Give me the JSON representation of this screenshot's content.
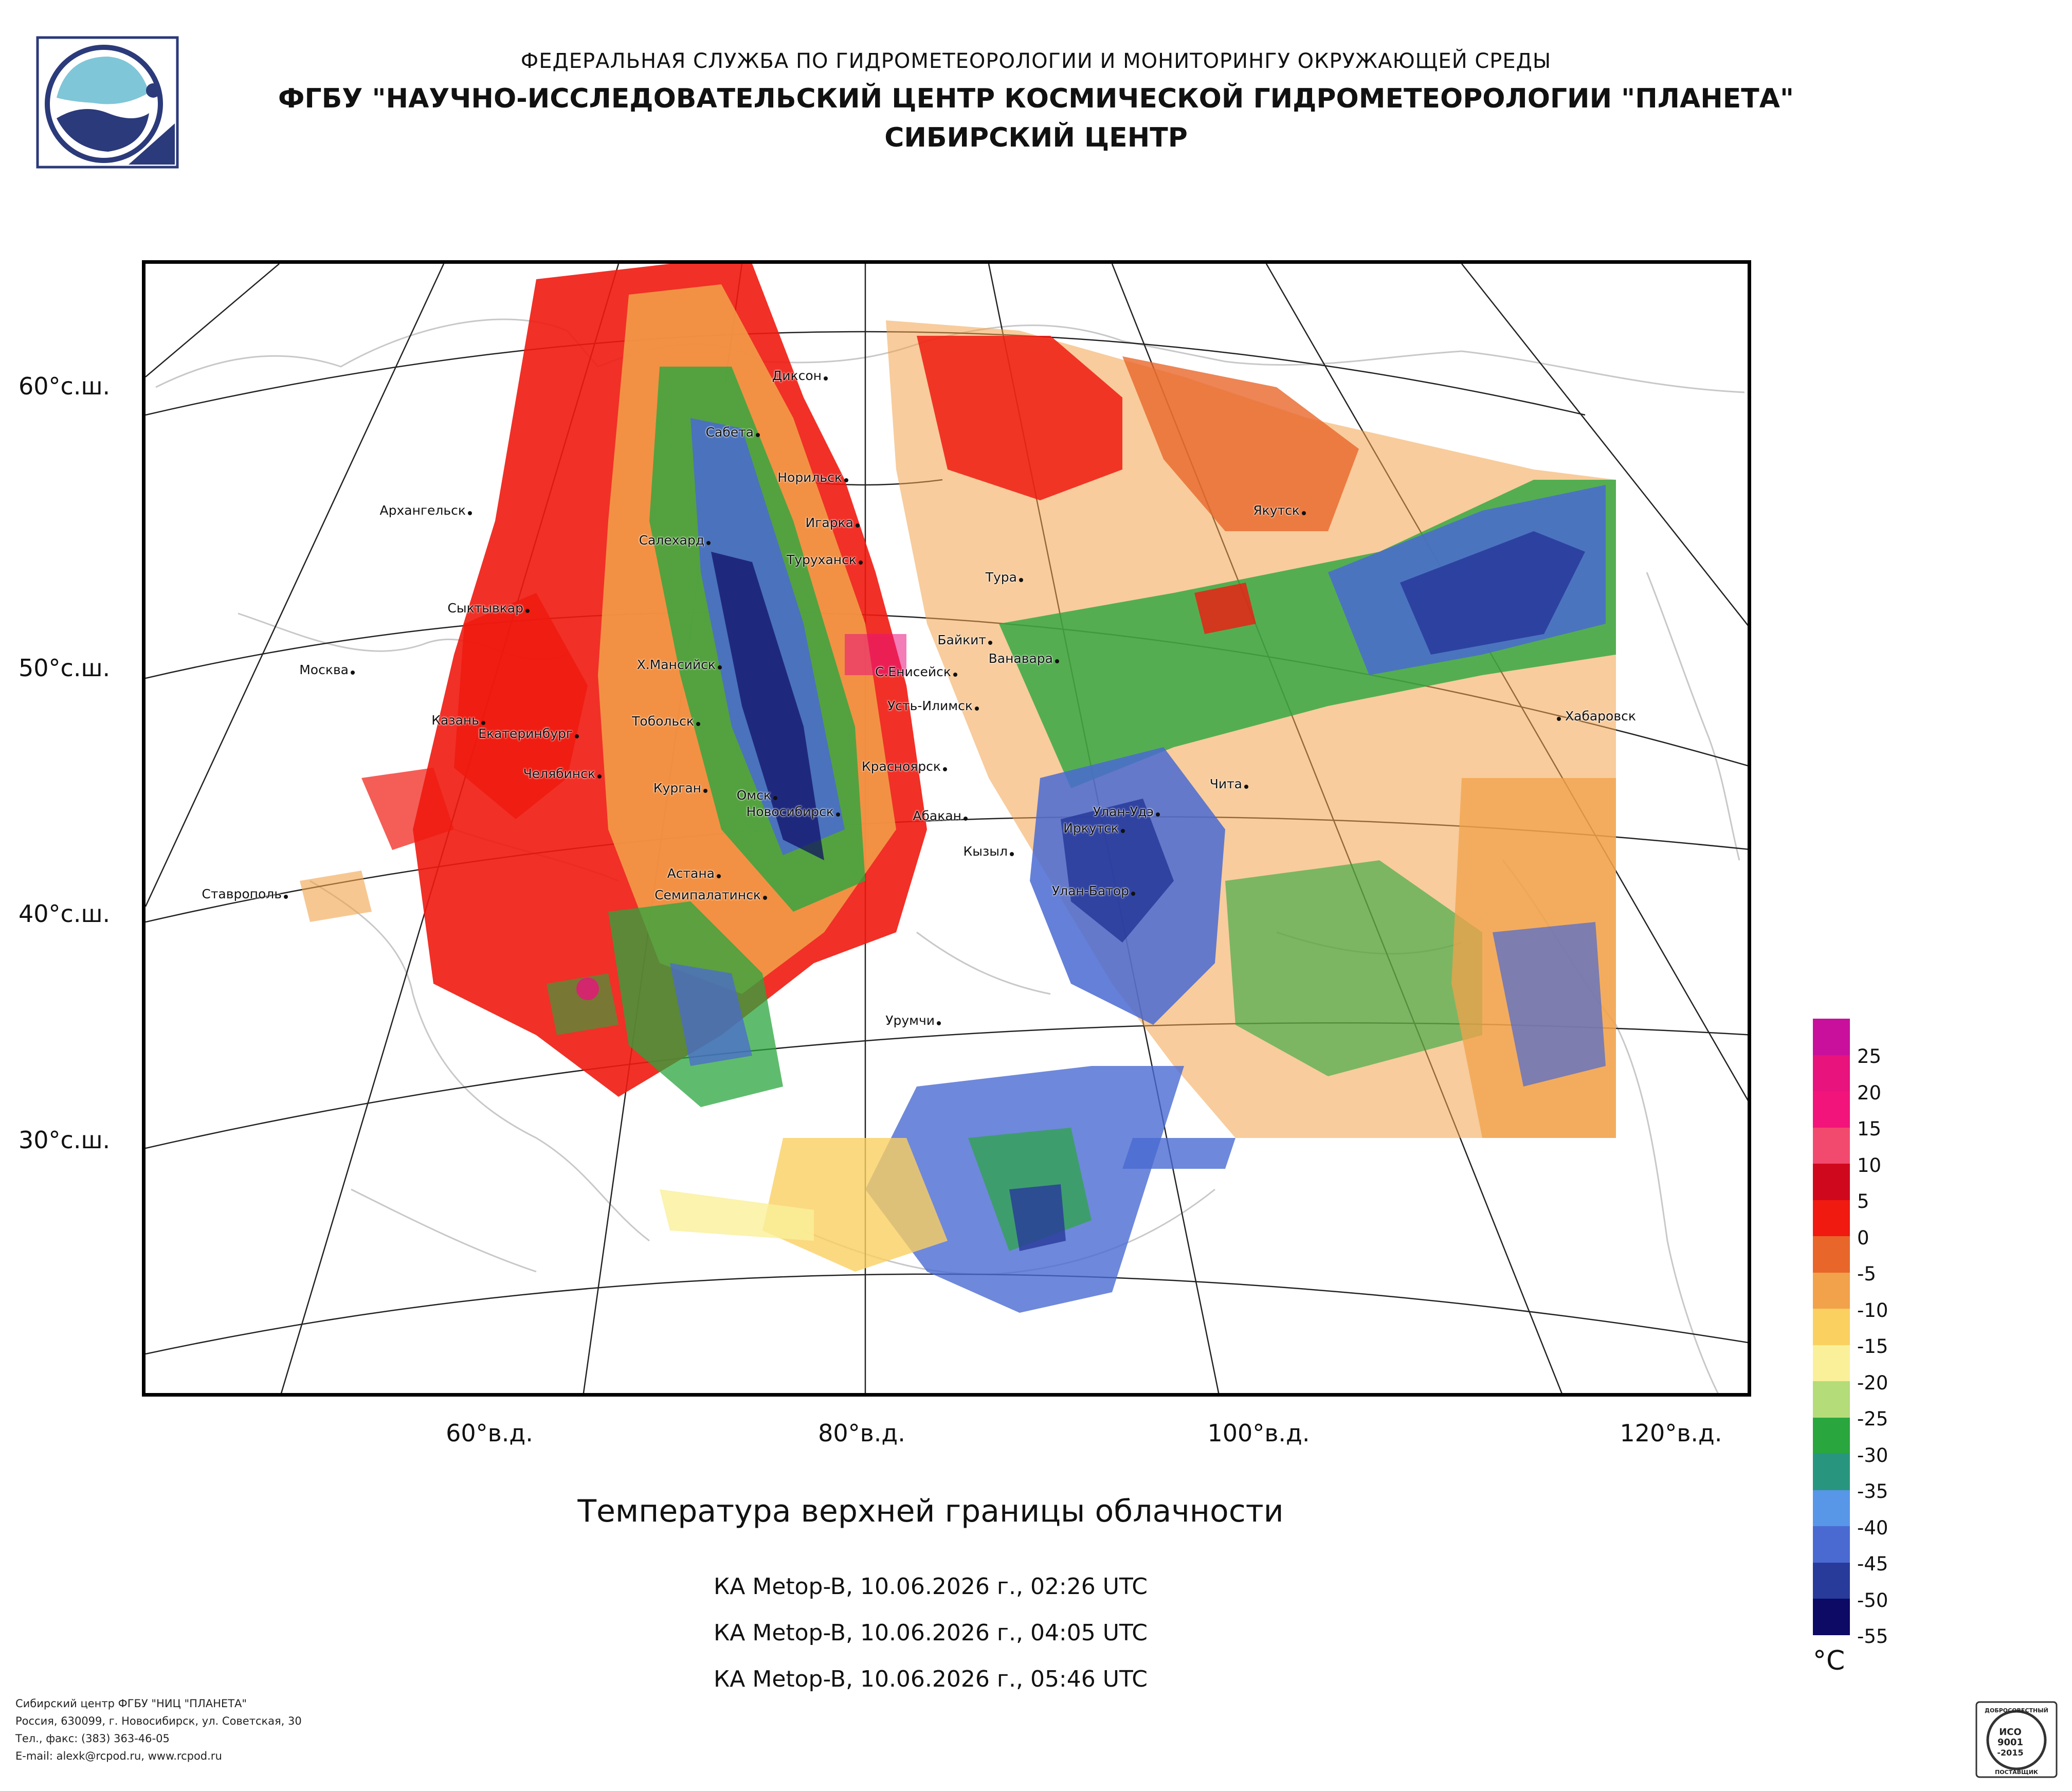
{
  "header": {
    "line1": "ФЕДЕРАЛЬНАЯ СЛУЖБА ПО ГИДРОМЕТЕОРОЛОГИИ И МОНИТОРИНГУ ОКРУЖАЮЩЕЙ СРЕДЫ",
    "line2": "ФГБУ \"НАУЧНО-ИССЛЕДОВАТЕЛЬСКИЙ ЦЕНТР КОСМИЧЕСКОЙ ГИДРОМЕТЕОРОЛОГИИ \"ПЛАНЕТА\"",
    "line3": "СИБИРСКИЙ ЦЕНТР"
  },
  "map": {
    "lat_labels": [
      "60°с.ш.",
      "50°с.ш.",
      "40°с.ш.",
      "30°с.ш."
    ],
    "lon_labels": [
      "60°в.д.",
      "80°в.д.",
      "100°в.д.",
      "120°в.д."
    ],
    "cities": [
      "Диксон",
      "Сабета",
      "Норильск",
      "Игарка",
      "Туруханск",
      "Тура",
      "Якутск",
      "Архангельск",
      "Салехард",
      "Сыктывкар",
      "Москва",
      "Х.Мансийск",
      "Байкит",
      "Ванавара",
      "С.Енисейск",
      "Усть-Илимск",
      "Хабаровск",
      "Казань",
      "Екатеринбург",
      "Тобольск",
      "Челябинск",
      "Курган",
      "Красноярск",
      "Чита",
      "Омск",
      "Новосибирск",
      "Абакан",
      "Улан-Удэ",
      "Иркутск",
      "Кызыл",
      "Астана",
      "Улан-Батор",
      "Ставрополь",
      "Семипалатинск",
      "Урумчи"
    ]
  },
  "title": "Температура верхней границы облачности",
  "passes": [
    "КА Metop-B, 10.06.2026 г., 02:26 UTC",
    "КА Metop-B, 10.06.2026 г., 04:05 UTC",
    "КА Metop-B, 10.06.2026 г., 05:46 UTC"
  ],
  "legend": {
    "unit": "°С",
    "labels": [
      "25",
      "20",
      "15",
      "10",
      "5",
      "0",
      "-5",
      "-10",
      "-15",
      "-20",
      "-25",
      "-30",
      "-35",
      "-40",
      "-45",
      "-50",
      "-55"
    ],
    "colors": [
      "#c8109c",
      "#e8137c",
      "#f2147a",
      "#f24a6e",
      "#d0081e",
      "#f01a10",
      "#e8662a",
      "#f2a24a",
      "#fad060",
      "#faf09a",
      "#b4dc78",
      "#2aa63e",
      "#28967e",
      "#5896e8",
      "#4a6ad2",
      "#283a9a",
      "#0c0a64"
    ]
  },
  "footer": [
    "Сибирский центр ФГБУ \"НИЦ \"ПЛАНЕТА\"",
    "Россия, 630099, г. Новосибирск, ул. Советская, 30",
    "Тел., факс: (383) 363-46-05",
    "E-mail: alexk@rcpod.ru, www.rcpod.ru"
  ],
  "iso_badge": {
    "top_text": "ДОБРОСОВЕСТНЫЙ",
    "line1": "ИСО",
    "line2": "9001",
    "line3": "-2015",
    "bottom_text": "ПОСТАВЩИК"
  }
}
